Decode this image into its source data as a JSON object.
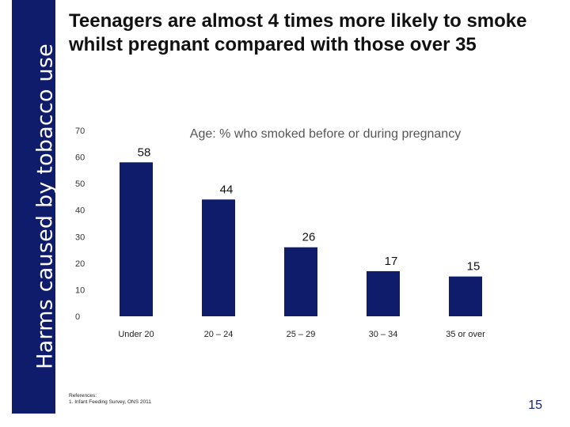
{
  "side_banner": {
    "text": "Harms caused by tobacco use",
    "color": "#0e1c6b"
  },
  "slide": {
    "title": "Teenagers are almost 4 times more likely to smoke whilst pregnant compared with those over 35",
    "references_heading": "References:",
    "reference_1": "1. Infant Feeding Survey, ONS 2011",
    "page_number": "15"
  },
  "chart_data": {
    "type": "bar",
    "title": "Age: % who smoked before or during pregnancy",
    "categories": [
      "Under 20",
      "20 – 24",
      "25 – 29",
      "30 – 34",
      "35 or over"
    ],
    "values": [
      58,
      44,
      26,
      17,
      15
    ],
    "value_labels": [
      "58",
      "44",
      "26",
      "17",
      "15"
    ],
    "ylim": [
      0,
      70
    ],
    "yticks": [
      0,
      10,
      20,
      30,
      40,
      50,
      60,
      70
    ],
    "xlabel": "",
    "ylabel": "",
    "grid": false,
    "bar_color": "#0e1c6b"
  }
}
